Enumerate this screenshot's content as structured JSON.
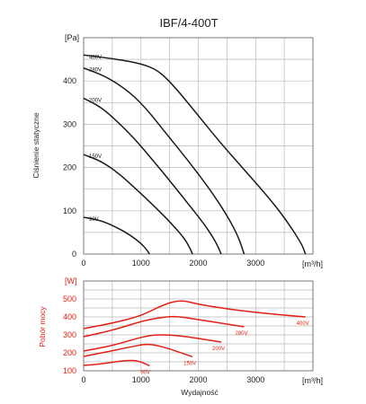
{
  "chart_data": [
    {
      "type": "line",
      "title": "IBF/4-400T",
      "ylabel": "Ciśnienie statyczne",
      "yunit": "[Pa]",
      "xunit": "[m³/h]",
      "xlim": [
        0,
        4000
      ],
      "ylim": [
        0,
        500
      ],
      "xticks": [
        "0",
        "1000",
        "2000",
        "3000"
      ],
      "yticks": [
        "0",
        "100",
        "200",
        "300",
        "400"
      ],
      "grid": true,
      "series": [
        {
          "name": "400V",
          "color": "#1a1a1a",
          "x": [
            0,
            600,
            1000,
            1300,
            1600,
            2000,
            2400,
            2800,
            3200,
            3500,
            3800,
            3870
          ],
          "y": [
            460,
            450,
            440,
            425,
            385,
            320,
            255,
            195,
            135,
            85,
            25,
            0
          ]
        },
        {
          "name": "280V",
          "color": "#1a1a1a",
          "x": [
            0,
            400,
            800,
            1100,
            1400,
            1800,
            2200,
            2500,
            2700,
            2800
          ],
          "y": [
            430,
            410,
            375,
            335,
            285,
            220,
            150,
            90,
            40,
            0
          ]
        },
        {
          "name": "200V",
          "color": "#1a1a1a",
          "x": [
            0,
            300,
            600,
            900,
            1200,
            1500,
            1800,
            2100,
            2300,
            2400
          ],
          "y": [
            360,
            340,
            305,
            265,
            218,
            170,
            120,
            70,
            30,
            0
          ]
        },
        {
          "name": "150V",
          "color": "#1a1a1a",
          "x": [
            0,
            300,
            600,
            900,
            1200,
            1500,
            1750,
            1850,
            1900
          ],
          "y": [
            230,
            215,
            188,
            152,
            115,
            75,
            38,
            15,
            0
          ]
        },
        {
          "name": "90V",
          "color": "#1a1a1a",
          "x": [
            0,
            300,
            600,
            800,
            1000,
            1100,
            1150
          ],
          "y": [
            85,
            78,
            60,
            45,
            25,
            10,
            0
          ]
        }
      ]
    },
    {
      "type": "line",
      "ylabel": "Pobór mocy",
      "yunit": "[W]",
      "xunit": "[m³/h]",
      "xlabel": "Wydajność",
      "xlim": [
        0,
        4000
      ],
      "ylim": [
        100,
        600
      ],
      "xticks": [
        "0",
        "1000",
        "2000",
        "3000"
      ],
      "yticks": [
        "100",
        "200",
        "300",
        "400",
        "500"
      ],
      "grid": true,
      "color": "#e21f13",
      "series": [
        {
          "name": "400V",
          "color": "#e21f13",
          "x": [
            0,
            500,
            1000,
            1400,
            1700,
            2000,
            2500,
            3000,
            3500,
            3870
          ],
          "y": [
            335,
            365,
            405,
            470,
            495,
            470,
            445,
            425,
            410,
            400
          ]
        },
        {
          "name": "280V",
          "color": "#e21f13",
          "x": [
            0,
            500,
            1000,
            1300,
            1600,
            2000,
            2400,
            2800
          ],
          "y": [
            290,
            325,
            375,
            395,
            405,
            385,
            365,
            345
          ]
        },
        {
          "name": "200V",
          "color": "#e21f13",
          "x": [
            0,
            500,
            900,
            1200,
            1500,
            1800,
            2100,
            2400
          ],
          "y": [
            210,
            240,
            278,
            300,
            300,
            290,
            275,
            260
          ]
        },
        {
          "name": "150V",
          "color": "#e21f13",
          "x": [
            0,
            400,
            800,
            1100,
            1300,
            1500,
            1700,
            1900
          ],
          "y": [
            180,
            205,
            232,
            250,
            240,
            222,
            200,
            178
          ]
        },
        {
          "name": "90V",
          "color": "#e21f13",
          "x": [
            0,
            300,
            600,
            850,
            1000,
            1150
          ],
          "y": [
            130,
            138,
            152,
            160,
            150,
            128
          ]
        }
      ]
    }
  ]
}
